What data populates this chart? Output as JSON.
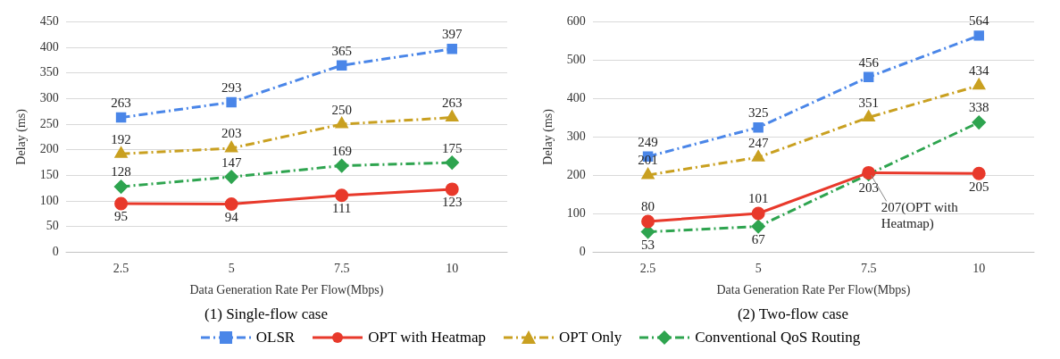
{
  "chart_data": [
    {
      "type": "line",
      "title": "(1) Single-flow case",
      "xlabel": "Data Generation Rate Per Flow(Mbps)",
      "ylabel": "Delay (ms)",
      "categories": [
        "2.5",
        "5",
        "7.5",
        "10"
      ],
      "ylim": [
        0,
        450
      ],
      "yticks": [
        0,
        50,
        100,
        150,
        200,
        250,
        300,
        350,
        400,
        450
      ],
      "grid": "y",
      "legend": "bottom",
      "data_labels": true,
      "series": [
        {
          "name": "OLSR",
          "color": "#4a86e8",
          "values": [
            263,
            293,
            365,
            397
          ],
          "marker": "square",
          "line_style": "dashed"
        },
        {
          "name": "OPT with Heatmap",
          "color": "#e8392b",
          "values": [
            95,
            94,
            111,
            123
          ],
          "marker": "circle",
          "line_style": "solid"
        },
        {
          "name": "OPT Only",
          "color": "#c9a020",
          "values": [
            192,
            203,
            250,
            263
          ],
          "marker": "triangle",
          "line_style": "dashed"
        },
        {
          "name": "Conventional QoS Routing",
          "color": "#2ea44f",
          "values": [
            128,
            147,
            169,
            175
          ],
          "marker": "diamond",
          "line_style": "dashed"
        }
      ]
    },
    {
      "type": "line",
      "title": "(2) Two-flow case",
      "xlabel": "Data Generation Rate Per Flow(Mbps)",
      "ylabel": "Delay (ms)",
      "categories": [
        "2.5",
        "5",
        "7.5",
        "10"
      ],
      "ylim": [
        0,
        600
      ],
      "yticks": [
        0,
        100,
        200,
        300,
        400,
        500,
        600
      ],
      "grid": "y",
      "annotations": [
        {
          "text": "207(OPT with Heatmap)",
          "x": "7.5",
          "y": 207
        }
      ],
      "series": [
        {
          "color": "#4a86e8",
          "values": [
            249,
            325,
            456,
            564
          ],
          "value_labels": [
            "249",
            "325",
            "456",
            "564"
          ],
          "marker": "square",
          "line_style": "dashed"
        },
        {
          "color": "#e8392b",
          "values": [
            80,
            101,
            207,
            205
          ],
          "value_labels": [
            "80",
            "101",
            null,
            "205"
          ],
          "marker": "circle",
          "line_style": "solid"
        },
        {
          "color": "#c9a020",
          "values": [
            201,
            247,
            351,
            434
          ],
          "value_labels": [
            "201",
            "247",
            "351",
            "434"
          ],
          "marker": "triangle",
          "line_style": "dashed"
        },
        {
          "color": "#2ea44f",
          "values": [
            53,
            67,
            203,
            338
          ],
          "value_labels": [
            "53",
            "67",
            "203",
            "338"
          ],
          "marker": "diamond",
          "line_style": "dashed"
        }
      ]
    }
  ]
}
